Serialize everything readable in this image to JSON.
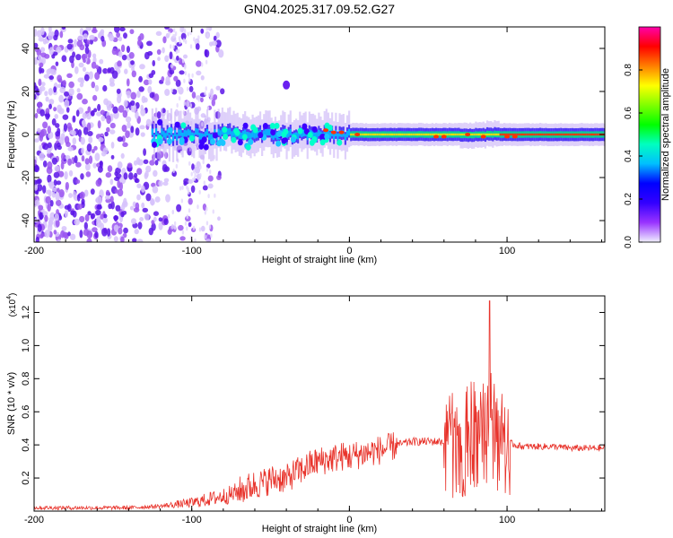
{
  "figure_title": "GN04.2025.317.09.52.G27",
  "chart_data": [
    {
      "type": "heatmap",
      "title": "GN04.2025.317.09.52.G27",
      "xlabel": "Height of straight line (km)",
      "ylabel": "Frequency (Hz)",
      "xlim": [
        -200,
        162
      ],
      "ylim": [
        -50,
        50
      ],
      "xticks": [
        -200,
        -100,
        0,
        100
      ],
      "xtick_labels": [
        "-200",
        "-100",
        "0",
        "100"
      ],
      "yticks": [
        -40,
        -20,
        0,
        20,
        40
      ],
      "ytick_labels": [
        "-40",
        "-20",
        "0",
        "20",
        "40"
      ],
      "colorbar": {
        "label": "Normalized spectral amplitude",
        "range": [
          0,
          1
        ],
        "ticks": [
          0.0,
          0.2,
          0.4,
          0.6,
          0.8
        ],
        "tick_labels": [
          "0.0",
          "0.2",
          "0.4",
          "0.6",
          "0.8"
        ],
        "colormap": [
          "#f0f0ff",
          "#9933ff",
          "#3300ff",
          "#0000ff",
          "#00bfff",
          "#00ffbf",
          "#00ff00",
          "#7fff00",
          "#ffff00",
          "#ff7f00",
          "#ff0000",
          "#ff00aa"
        ]
      },
      "features": {
        "noise_region_km": [
          -200,
          -95
        ],
        "signal_start_km": -125,
        "signal_track_freq_hz": 0,
        "isolated_blob": {
          "x_km": -40,
          "y_hz": 23
        }
      },
      "grid": false,
      "legend": "none"
    },
    {
      "type": "line",
      "xlabel": "Height of straight line (km)",
      "ylabel": "SNR (10 * v/v)",
      "y_multiplier_label": "(x10",
      "y_multiplier_exp": "4",
      "xlim": [
        -200,
        162
      ],
      "ylim": [
        0.0,
        1.3
      ],
      "xticks": [
        -200,
        -100,
        0,
        100
      ],
      "xtick_labels": [
        "-200",
        "-100",
        "0",
        "100"
      ],
      "yticks": [
        0.2,
        0.4,
        0.6,
        0.8,
        1.0,
        1.2
      ],
      "ytick_labels": [
        "0.2",
        "0.4",
        "0.6",
        "0.8",
        "1.0",
        "1.2"
      ],
      "line_color": "#e8332b",
      "series": [
        {
          "x": [
            -200,
            -180,
            -160,
            -140,
            -130,
            -120,
            -110,
            -100,
            -95,
            -90,
            -85,
            -80,
            -75,
            -70,
            -65,
            -60,
            -55,
            -50,
            -45,
            -40,
            -35,
            -30,
            -25,
            -20,
            -15,
            -10,
            -5,
            0,
            5,
            10,
            15,
            20,
            25,
            30,
            35,
            40,
            45,
            50,
            55,
            60,
            65,
            70,
            75,
            80,
            85,
            90,
            95,
            100,
            105,
            110,
            120,
            130,
            140,
            150,
            162
          ],
          "y": [
            0.02,
            0.02,
            0.02,
            0.02,
            0.025,
            0.03,
            0.04,
            0.05,
            0.06,
            0.07,
            0.08,
            0.09,
            0.1,
            0.12,
            0.14,
            0.16,
            0.17,
            0.19,
            0.2,
            0.19,
            0.23,
            0.25,
            0.28,
            0.3,
            0.31,
            0.32,
            0.33,
            0.33,
            0.34,
            0.35,
            0.36,
            0.37,
            0.38,
            0.4,
            0.41,
            0.42,
            0.42,
            0.42,
            0.42,
            0.42,
            0.42,
            0.42,
            0.43,
            0.45,
            0.5,
            0.55,
            0.45,
            0.42,
            0.4,
            0.39,
            0.39,
            0.39,
            0.38,
            0.38,
            0.38
          ]
        }
      ],
      "peak": {
        "x": 89,
        "y": 1.27
      },
      "grid": false,
      "legend": "none"
    }
  ]
}
